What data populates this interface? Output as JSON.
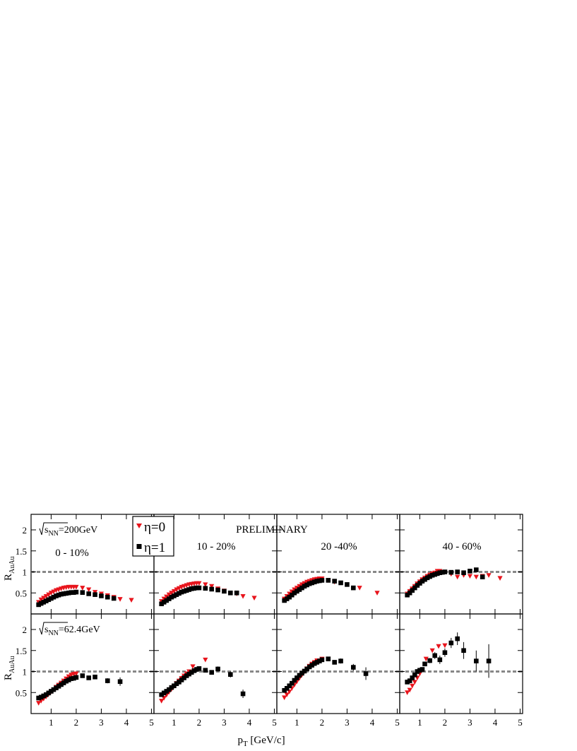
{
  "annotation": "PRELIMINARY",
  "x_label": {
    "main": "p",
    "subscript": "T",
    "rest": " [GeV/c]"
  },
  "y_label": {
    "main": "R",
    "subscript": "AuAu"
  },
  "chart_data": [
    {
      "type": "scatter",
      "title": "0 - 10%",
      "energy": {
        "symbol": "s",
        "subscript": "NN",
        "value": "=200GeV"
      },
      "xlim": [
        0.2,
        5.1
      ],
      "ylim": [
        0,
        2.37
      ],
      "xticks": [
        1,
        2,
        3,
        4,
        5
      ],
      "yticks": [
        0.5,
        1,
        1.5,
        2
      ],
      "reference_line": 1,
      "series": [
        {
          "name": "η=0",
          "color": "#e8141c",
          "marker": "triangle-down",
          "x": [
            0.5,
            0.6,
            0.7,
            0.8,
            0.9,
            1.0,
            1.1,
            1.2,
            1.3,
            1.4,
            1.5,
            1.6,
            1.7,
            1.8,
            1.9,
            2.0,
            2.25,
            2.5,
            2.75,
            3.0,
            3.25,
            3.5,
            3.75,
            4.2
          ],
          "values": [
            0.28,
            0.34,
            0.38,
            0.42,
            0.46,
            0.5,
            0.53,
            0.56,
            0.58,
            0.6,
            0.62,
            0.63,
            0.64,
            0.64,
            0.64,
            0.64,
            0.62,
            0.58,
            0.52,
            0.48,
            0.44,
            0.4,
            0.35,
            0.33
          ]
        },
        {
          "name": "η=1",
          "color": "#000000",
          "marker": "square",
          "x": [
            0.5,
            0.6,
            0.7,
            0.8,
            0.9,
            1.0,
            1.1,
            1.2,
            1.3,
            1.4,
            1.5,
            1.6,
            1.7,
            1.8,
            1.9,
            2.0,
            2.25,
            2.5,
            2.75,
            3.0,
            3.25,
            3.5
          ],
          "values": [
            0.22,
            0.25,
            0.28,
            0.31,
            0.34,
            0.37,
            0.4,
            0.43,
            0.45,
            0.47,
            0.48,
            0.49,
            0.5,
            0.51,
            0.51,
            0.52,
            0.51,
            0.48,
            0.46,
            0.43,
            0.4,
            0.37
          ]
        }
      ]
    },
    {
      "type": "scatter",
      "title": "10 - 20%",
      "xlim": [
        0.2,
        5.1
      ],
      "ylim": [
        0,
        2.37
      ],
      "xticks": [
        1,
        2,
        3,
        4,
        5
      ],
      "yticks": [
        0.5,
        1,
        1.5,
        2
      ],
      "reference_line": 1,
      "series": [
        {
          "name": "η=0",
          "color": "#e8141c",
          "marker": "triangle-down",
          "x": [
            0.5,
            0.6,
            0.7,
            0.8,
            0.9,
            1.0,
            1.1,
            1.2,
            1.3,
            1.4,
            1.5,
            1.6,
            1.7,
            1.8,
            1.9,
            2.0,
            2.25,
            2.5,
            2.75,
            3.0,
            3.5,
            3.75,
            4.2
          ],
          "values": [
            0.3,
            0.36,
            0.41,
            0.46,
            0.5,
            0.54,
            0.58,
            0.61,
            0.64,
            0.66,
            0.68,
            0.7,
            0.71,
            0.72,
            0.73,
            0.73,
            0.7,
            0.66,
            0.6,
            0.55,
            0.48,
            0.42,
            0.38
          ]
        },
        {
          "name": "η=1",
          "color": "#000000",
          "marker": "square",
          "x": [
            0.5,
            0.6,
            0.7,
            0.8,
            0.9,
            1.0,
            1.1,
            1.2,
            1.3,
            1.4,
            1.5,
            1.6,
            1.7,
            1.8,
            1.9,
            2.0,
            2.25,
            2.5,
            2.75,
            3.0,
            3.25,
            3.5
          ],
          "values": [
            0.24,
            0.28,
            0.32,
            0.36,
            0.4,
            0.43,
            0.46,
            0.49,
            0.52,
            0.54,
            0.56,
            0.58,
            0.6,
            0.61,
            0.62,
            0.62,
            0.61,
            0.59,
            0.57,
            0.54,
            0.5,
            0.5
          ]
        }
      ]
    },
    {
      "type": "scatter",
      "title": "20 -40%",
      "xlim": [
        0.2,
        5.1
      ],
      "ylim": [
        0,
        2.37
      ],
      "xticks": [
        1,
        2,
        3,
        4,
        5
      ],
      "yticks": [
        0.5,
        1,
        1.5,
        2
      ],
      "reference_line": 1,
      "series": [
        {
          "name": "η=0",
          "color": "#e8141c",
          "marker": "triangle-down",
          "x": [
            0.5,
            0.6,
            0.7,
            0.8,
            0.9,
            1.0,
            1.1,
            1.2,
            1.3,
            1.4,
            1.5,
            1.6,
            1.7,
            1.8,
            1.9,
            2.0,
            2.25,
            2.5,
            3.5,
            4.2
          ],
          "values": [
            0.36,
            0.42,
            0.48,
            0.53,
            0.58,
            0.62,
            0.66,
            0.7,
            0.73,
            0.76,
            0.78,
            0.8,
            0.82,
            0.83,
            0.84,
            0.84,
            0.8,
            0.76,
            0.62,
            0.5
          ]
        },
        {
          "name": "η=1",
          "color": "#000000",
          "marker": "square",
          "x": [
            0.5,
            0.6,
            0.7,
            0.8,
            0.9,
            1.0,
            1.1,
            1.2,
            1.3,
            1.4,
            1.5,
            1.6,
            1.7,
            1.8,
            1.9,
            2.0,
            2.25,
            2.5,
            2.75,
            3.0,
            3.25
          ],
          "values": [
            0.32,
            0.36,
            0.4,
            0.45,
            0.5,
            0.54,
            0.58,
            0.62,
            0.66,
            0.69,
            0.72,
            0.74,
            0.76,
            0.78,
            0.79,
            0.8,
            0.8,
            0.78,
            0.74,
            0.7,
            0.62
          ]
        }
      ]
    },
    {
      "type": "scatter",
      "title": "40 - 60%",
      "xlim": [
        0.2,
        5.1
      ],
      "ylim": [
        0,
        2.37
      ],
      "xticks": [
        1,
        2,
        3,
        4,
        5
      ],
      "yticks": [
        0.5,
        1,
        1.5,
        2
      ],
      "reference_line": 1,
      "series": [
        {
          "name": "η=0",
          "color": "#e8141c",
          "marker": "triangle-down",
          "x": [
            0.5,
            0.6,
            0.7,
            0.8,
            0.9,
            1.0,
            1.1,
            1.2,
            1.3,
            1.4,
            1.5,
            1.6,
            1.7,
            1.8,
            2.0,
            2.25,
            2.5,
            2.75,
            3.0,
            3.25,
            3.5,
            3.75,
            4.2
          ],
          "values": [
            0.48,
            0.54,
            0.6,
            0.66,
            0.72,
            0.77,
            0.82,
            0.86,
            0.9,
            0.93,
            0.96,
            0.98,
            1.02,
            1.02,
            1.0,
            0.95,
            0.88,
            0.92,
            0.9,
            0.88,
            0.9,
            0.92,
            0.85
          ]
        },
        {
          "name": "η=1",
          "color": "#000000",
          "marker": "square",
          "x": [
            0.5,
            0.6,
            0.7,
            0.8,
            0.9,
            1.0,
            1.1,
            1.2,
            1.3,
            1.4,
            1.5,
            1.6,
            1.7,
            1.8,
            1.9,
            2.0,
            2.25,
            2.5,
            2.75,
            3.0,
            3.25,
            3.5
          ],
          "values": [
            0.45,
            0.5,
            0.56,
            0.62,
            0.68,
            0.73,
            0.78,
            0.82,
            0.86,
            0.89,
            0.92,
            0.94,
            0.96,
            0.98,
            0.99,
            1.0,
            0.99,
            1.0,
            0.98,
            1.02,
            1.05,
            0.88
          ]
        }
      ]
    },
    {
      "type": "scatter",
      "energy": {
        "symbol": "s",
        "subscript": "NN",
        "value": "=62.4GeV"
      },
      "xlim": [
        0.2,
        5.1
      ],
      "ylim": [
        0,
        2.37
      ],
      "xticks": [
        1,
        2,
        3,
        4,
        5
      ],
      "yticks": [
        0.5,
        1,
        1.5,
        2
      ],
      "reference_line": 1,
      "series": [
        {
          "name": "η=0",
          "color": "#e8141c",
          "marker": "triangle-down",
          "x": [
            0.5,
            0.6,
            0.7,
            0.8,
            0.9,
            1.0,
            1.1,
            1.2,
            1.3,
            1.4,
            1.5,
            1.6,
            1.7,
            1.8,
            1.9,
            2.0
          ],
          "values": [
            0.25,
            0.3,
            0.35,
            0.4,
            0.46,
            0.52,
            0.57,
            0.63,
            0.68,
            0.73,
            0.78,
            0.83,
            0.88,
            0.92,
            0.94,
            0.95
          ]
        },
        {
          "name": "η=1",
          "color": "#000000",
          "marker": "square",
          "x": [
            0.5,
            0.6,
            0.7,
            0.8,
            0.9,
            1.0,
            1.1,
            1.2,
            1.3,
            1.4,
            1.5,
            1.6,
            1.7,
            1.8,
            1.9,
            2.0,
            2.25,
            2.5,
            2.75,
            3.25,
            3.75
          ],
          "values": [
            0.37,
            0.39,
            0.42,
            0.45,
            0.49,
            0.53,
            0.57,
            0.61,
            0.65,
            0.69,
            0.73,
            0.77,
            0.8,
            0.83,
            0.84,
            0.86,
            0.9,
            0.85,
            0.87,
            0.78,
            0.76
          ],
          "errors": [
            0.02,
            0.02,
            0.02,
            0.02,
            0.02,
            0.02,
            0.02,
            0.02,
            0.02,
            0.02,
            0.02,
            0.02,
            0.02,
            0.02,
            0.03,
            0.03,
            0.04,
            0.04,
            0.05,
            0.06,
            0.1
          ]
        }
      ]
    },
    {
      "type": "scatter",
      "xlim": [
        0.2,
        5.1
      ],
      "ylim": [
        0,
        2.37
      ],
      "xticks": [
        1,
        2,
        3,
        4,
        5
      ],
      "yticks": [
        0.5,
        1,
        1.5,
        2
      ],
      "reference_line": 1,
      "series": [
        {
          "name": "η=0",
          "color": "#e8141c",
          "marker": "triangle-down",
          "x": [
            0.5,
            0.6,
            0.7,
            0.8,
            0.9,
            1.0,
            1.1,
            1.2,
            1.3,
            1.4,
            1.5,
            1.6,
            1.75,
            2.25
          ],
          "values": [
            0.3,
            0.37,
            0.44,
            0.51,
            0.58,
            0.65,
            0.72,
            0.78,
            0.84,
            0.9,
            0.95,
            1.0,
            1.12,
            1.28
          ]
        },
        {
          "name": "η=1",
          "color": "#000000",
          "marker": "square",
          "x": [
            0.5,
            0.6,
            0.7,
            0.8,
            0.9,
            1.0,
            1.1,
            1.2,
            1.3,
            1.4,
            1.5,
            1.6,
            1.7,
            1.8,
            1.9,
            2.0,
            2.25,
            2.5,
            2.75,
            3.25,
            3.75
          ],
          "values": [
            0.45,
            0.49,
            0.53,
            0.57,
            0.62,
            0.66,
            0.71,
            0.75,
            0.8,
            0.85,
            0.9,
            0.94,
            0.98,
            1.02,
            1.05,
            1.07,
            1.03,
            0.98,
            1.06,
            0.93,
            0.47
          ],
          "errors": [
            0.02,
            0.02,
            0.02,
            0.02,
            0.02,
            0.02,
            0.02,
            0.02,
            0.02,
            0.02,
            0.02,
            0.03,
            0.03,
            0.03,
            0.04,
            0.04,
            0.05,
            0.05,
            0.06,
            0.07,
            0.1
          ]
        }
      ]
    },
    {
      "type": "scatter",
      "xlim": [
        0.2,
        5.1
      ],
      "ylim": [
        0,
        2.37
      ],
      "xticks": [
        1,
        2,
        3,
        4,
        5
      ],
      "yticks": [
        0.5,
        1,
        1.5,
        2
      ],
      "reference_line": 1,
      "series": [
        {
          "name": "η=0",
          "color": "#e8141c",
          "marker": "triangle-down",
          "x": [
            0.5,
            0.6,
            0.7,
            0.8,
            0.9,
            1.0,
            1.1,
            1.2,
            1.3,
            1.4,
            1.5,
            1.6,
            1.7,
            1.8,
            2.0,
            2.25
          ],
          "values": [
            0.38,
            0.45,
            0.52,
            0.6,
            0.68,
            0.76,
            0.84,
            0.92,
            1.0,
            1.07,
            1.13,
            1.18,
            1.22,
            1.26,
            1.3,
            1.3
          ]
        },
        {
          "name": "η=1",
          "color": "#000000",
          "marker": "square",
          "x": [
            0.5,
            0.6,
            0.7,
            0.8,
            0.9,
            1.0,
            1.1,
            1.2,
            1.3,
            1.4,
            1.5,
            1.6,
            1.7,
            1.8,
            1.9,
            2.0,
            2.25,
            2.5,
            2.75,
            3.25,
            3.75
          ],
          "values": [
            0.55,
            0.6,
            0.66,
            0.72,
            0.79,
            0.85,
            0.91,
            0.96,
            1.01,
            1.06,
            1.11,
            1.15,
            1.19,
            1.22,
            1.25,
            1.28,
            1.3,
            1.22,
            1.25,
            1.1,
            0.95
          ],
          "errors": [
            0.02,
            0.02,
            0.02,
            0.02,
            0.02,
            0.02,
            0.02,
            0.02,
            0.02,
            0.02,
            0.03,
            0.03,
            0.03,
            0.03,
            0.04,
            0.04,
            0.05,
            0.05,
            0.06,
            0.08,
            0.15
          ]
        }
      ]
    },
    {
      "type": "scatter",
      "xlim": [
        0.2,
        5.1
      ],
      "ylim": [
        0,
        2.37
      ],
      "xticks": [
        1,
        2,
        3,
        4,
        5
      ],
      "yticks": [
        0.5,
        1,
        1.5,
        2
      ],
      "reference_line": 1,
      "series": [
        {
          "name": "η=0",
          "color": "#e8141c",
          "marker": "triangle-down",
          "x": [
            0.5,
            0.6,
            0.7,
            0.8,
            0.9,
            1.0,
            1.25,
            1.5,
            1.75,
            2.0
          ],
          "values": [
            0.5,
            0.56,
            0.66,
            0.75,
            0.85,
            0.95,
            1.3,
            1.5,
            1.6,
            1.62
          ]
        },
        {
          "name": "η=1",
          "color": "#000000",
          "marker": "square",
          "x": [
            0.5,
            0.6,
            0.7,
            0.8,
            0.9,
            1.0,
            1.1,
            1.2,
            1.4,
            1.6,
            1.8,
            2.0,
            2.25,
            2.5,
            2.75,
            3.25,
            3.75
          ],
          "values": [
            0.75,
            0.78,
            0.85,
            0.92,
            1.0,
            1.03,
            1.05,
            1.18,
            1.26,
            1.38,
            1.28,
            1.45,
            1.68,
            1.78,
            1.5,
            1.25,
            1.25
          ],
          "errors": [
            0.03,
            0.03,
            0.03,
            0.03,
            0.04,
            0.04,
            0.05,
            0.05,
            0.06,
            0.08,
            0.1,
            0.1,
            0.12,
            0.15,
            0.2,
            0.25,
            0.4
          ]
        }
      ]
    }
  ]
}
